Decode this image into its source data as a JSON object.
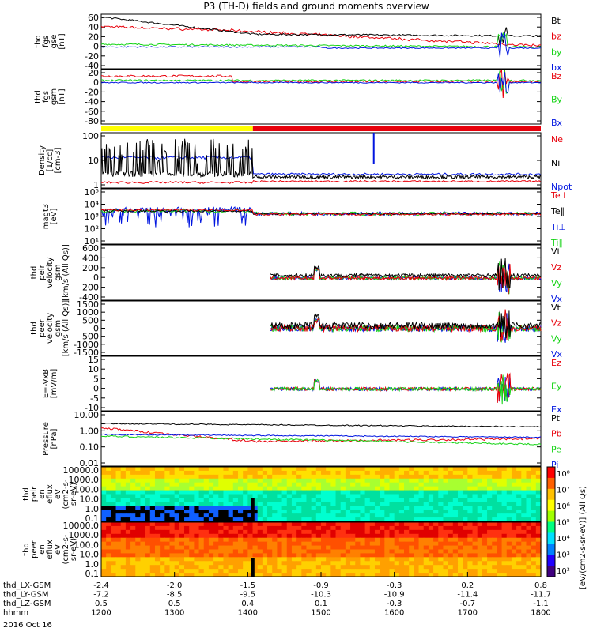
{
  "title": "P3 (TH-D) fields and ground moments overview",
  "colors": {
    "black": "#000000",
    "red": "#e8000b",
    "green": "#16d416",
    "blue": "#0015e0",
    "yellow": "#ffff00"
  },
  "chart_data": {
    "type": "line",
    "title": "P3 (TH-D) fields and ground moments overview",
    "x_tick_labels": [
      "1200",
      "1300",
      "1400",
      "1500",
      "1600",
      "1700",
      "1800"
    ],
    "x_label_rows": [
      {
        "name": "thd_LX-GSM",
        "values": [
          "-2.4",
          "-2.0",
          "-1.5",
          "-0.9",
          "-0.3",
          "0.2",
          "0.8"
        ]
      },
      {
        "name": "thd_LY-GSM",
        "values": [
          "-7.2",
          "-8.5",
          "-9.5",
          "-10.3",
          "-10.9",
          "-11.4",
          "-11.7"
        ]
      },
      {
        "name": "thd_LZ-GSM",
        "values": [
          "0.5",
          "0.5",
          "0.4",
          "0.1",
          "-0.3",
          "-0.7",
          "-1.1"
        ]
      },
      {
        "name": "hhmm",
        "values": [
          "1200",
          "1300",
          "1400",
          "1500",
          "1600",
          "1700",
          "1800"
        ]
      }
    ],
    "date_label": "2016 Oct 16",
    "panels": [
      {
        "id": "fgs",
        "ylabel": [
          "thd",
          "fgs",
          "gse",
          "[nT]"
        ],
        "yticks": [
          "60",
          "40",
          "20",
          "0",
          "-20",
          "-40"
        ],
        "ylim": [
          -40,
          60
        ],
        "legend": [
          {
            "name": "Bt",
            "color": "black"
          },
          {
            "name": "bz",
            "color": "red"
          },
          {
            "name": "by",
            "color": "green"
          },
          {
            "name": "bx",
            "color": "blue"
          }
        ]
      },
      {
        "id": "fgs_gsm",
        "ylabel": [
          "thd",
          "fgs",
          "gsm",
          "[nT]"
        ],
        "yticks": [
          "20",
          "0",
          "-20",
          "-40",
          "-60",
          "-80"
        ],
        "ylim": [
          -80,
          20
        ],
        "legend": [
          {
            "name": "Bz",
            "color": "red"
          },
          {
            "name": "By",
            "color": "green"
          },
          {
            "name": "Bx",
            "color": "blue"
          }
        ]
      },
      {
        "id": "density",
        "ylabel": [
          "Density",
          "[1/cc]",
          "[cm-3]"
        ],
        "yticks": [
          "100",
          "10",
          "1"
        ],
        "log": true,
        "legend": [
          {
            "name": "Ne",
            "color": "red"
          },
          {
            "name": "Ni",
            "color": "black"
          },
          {
            "name": "Npot",
            "color": "blue"
          }
        ]
      },
      {
        "id": "temp",
        "ylabel": [
          "magt3",
          "[eV]"
        ],
        "yticks": [
          "10⁵",
          "10⁴",
          "10³",
          "10²",
          "10¹"
        ],
        "log": true,
        "legend": [
          {
            "name": "Te⊥",
            "color": "red"
          },
          {
            "name": "Te∥",
            "color": "black"
          },
          {
            "name": "Ti⊥",
            "color": "blue"
          },
          {
            "name": "Ti∥",
            "color": "green"
          }
        ]
      },
      {
        "id": "peir_vel",
        "ylabel": [
          "thd",
          "peir",
          "velocity",
          "gsm",
          "[km/s (All Qs)]"
        ],
        "yticks": [
          "600",
          "400",
          "200",
          "0",
          "-200",
          "-400"
        ],
        "ylim": [
          -400,
          600
        ],
        "legend": [
          {
            "name": "Vt",
            "color": "black"
          },
          {
            "name": "Vz",
            "color": "red"
          },
          {
            "name": "Vy",
            "color": "green"
          },
          {
            "name": "Vx",
            "color": "blue"
          }
        ]
      },
      {
        "id": "peer_vel",
        "ylabel": [
          "thd",
          "peer",
          "velocity",
          "gsm",
          "[km/s (All Qs)]"
        ],
        "yticks": [
          "1500",
          "1000",
          "500",
          "0",
          "-500",
          "-1000",
          "-1500"
        ],
        "ylim": [
          -1500,
          1500
        ],
        "legend": [
          {
            "name": "Vt",
            "color": "black"
          },
          {
            "name": "Vz",
            "color": "red"
          },
          {
            "name": "Vy",
            "color": "green"
          },
          {
            "name": "Vx",
            "color": "blue"
          }
        ]
      },
      {
        "id": "efield",
        "ylabel": [
          "E=-VxB",
          "[mV/m]"
        ],
        "yticks": [
          "15",
          "10",
          "5",
          "0",
          "-5",
          "-10"
        ],
        "ylim": [
          -10,
          15
        ],
        "legend": [
          {
            "name": "Ez",
            "color": "red"
          },
          {
            "name": "Ey",
            "color": "green"
          },
          {
            "name": "Ex",
            "color": "blue"
          }
        ]
      },
      {
        "id": "pressure",
        "ylabel": [
          "Pressure",
          "[nPa]"
        ],
        "yticks": [
          "10.00",
          "1.00",
          "0.10",
          "0.01"
        ],
        "log": true,
        "legend": [
          {
            "name": "Pt",
            "color": "black"
          },
          {
            "name": "Pb",
            "color": "red"
          },
          {
            "name": "Pe",
            "color": "green"
          },
          {
            "name": "Pi",
            "color": "blue"
          }
        ]
      },
      {
        "id": "peir_spec",
        "ylabel": [
          "thd",
          "peir",
          "en",
          "eflux",
          "eV",
          "(cm2-s-",
          "sr-eV)"
        ],
        "yticks": [
          "10000.0",
          "1000.0",
          "100.0",
          "10.0",
          "1.0",
          "0.1"
        ]
      },
      {
        "id": "peer_spec",
        "ylabel": [
          "thd",
          "peer",
          "en",
          "eflux",
          "eV",
          "(cm2-s-",
          "sr-eV)"
        ],
        "yticks": [
          "10000.0",
          "1000.0",
          "100.0",
          "10.0",
          "1.0",
          "0.1"
        ]
      }
    ],
    "colorbar": {
      "ticks": [
        "10⁸",
        "10⁷",
        "10⁶",
        "10⁵",
        "10⁴",
        "10³",
        "10²"
      ],
      "label": "[eV/(cm2-s-sr-eV)] (All Qs)"
    }
  }
}
